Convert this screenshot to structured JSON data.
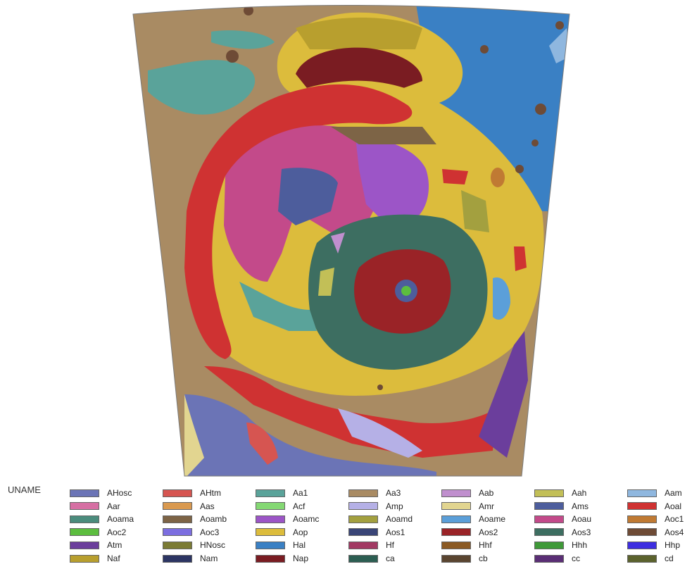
{
  "legend": {
    "title": "UNAME",
    "units": [
      {
        "label": "AHosc",
        "color": "#6b74b6"
      },
      {
        "label": "AHtm",
        "color": "#d65551"
      },
      {
        "label": "Aa1",
        "color": "#5aa39a"
      },
      {
        "label": "Aa3",
        "color": "#a98b63"
      },
      {
        "label": "Aab",
        "color": "#c08fce"
      },
      {
        "label": "Aah",
        "color": "#c2bf57"
      },
      {
        "label": "Aam",
        "color": "#8fb7df"
      },
      {
        "label": "Aar",
        "color": "#d66fa3"
      },
      {
        "label": "Aas",
        "color": "#d9994f"
      },
      {
        "label": "Acf",
        "color": "#84d873"
      },
      {
        "label": "Amp",
        "color": "#b5b0e6"
      },
      {
        "label": "Amr",
        "color": "#e2d590"
      },
      {
        "label": "Ams",
        "color": "#4d5d9c"
      },
      {
        "label": "Aoal",
        "color": "#cf3232"
      },
      {
        "label": "Aoama",
        "color": "#4b8c7d"
      },
      {
        "label": "Aoamb",
        "color": "#7d6446"
      },
      {
        "label": "Aoamc",
        "color": "#9c55c7"
      },
      {
        "label": "Aoamd",
        "color": "#a3a03f"
      },
      {
        "label": "Aoame",
        "color": "#5b9fd9"
      },
      {
        "label": "Aoau",
        "color": "#c34a8a"
      },
      {
        "label": "Aoc1",
        "color": "#c07a33"
      },
      {
        "label": "Aoc2",
        "color": "#5cbd3f"
      },
      {
        "label": "Aoc3",
        "color": "#7c6ee0"
      },
      {
        "label": "Aop",
        "color": "#dcbc3c"
      },
      {
        "label": "Aos1",
        "color": "#3a4577"
      },
      {
        "label": "Aos2",
        "color": "#9a2327"
      },
      {
        "label": "Aos3",
        "color": "#3d6e61"
      },
      {
        "label": "Aos4",
        "color": "#6e4b36"
      },
      {
        "label": "Atm",
        "color": "#6b3e9c"
      },
      {
        "label": "HNosc",
        "color": "#7b7b34"
      },
      {
        "label": "Hal",
        "color": "#3a80c4"
      },
      {
        "label": "Hf",
        "color": "#a23963"
      },
      {
        "label": "Hhf",
        "color": "#8b5a24"
      },
      {
        "label": "Hhh",
        "color": "#3f9938"
      },
      {
        "label": "Hhp",
        "color": "#3d2ee0"
      },
      {
        "label": "Naf",
        "color": "#b89f2e"
      },
      {
        "label": "Nam",
        "color": "#2c3563"
      },
      {
        "label": "Nap",
        "color": "#7a1c22"
      },
      {
        "label": "ca",
        "color": "#2c5e52"
      },
      {
        "label": "cb",
        "color": "#5a4530"
      },
      {
        "label": "cc",
        "color": "#5a2e75"
      },
      {
        "label": "cd",
        "color": "#5b622d"
      }
    ]
  }
}
